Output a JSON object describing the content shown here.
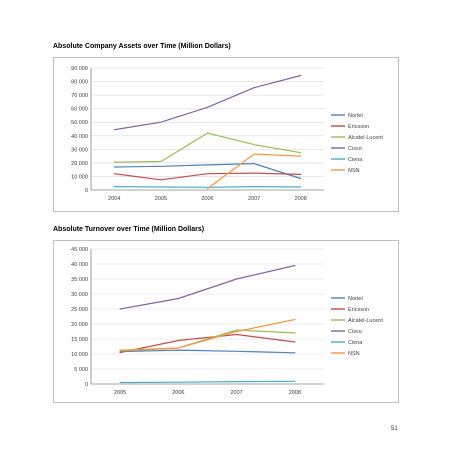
{
  "page": {
    "page_number": "51"
  },
  "chart_data": [
    {
      "type": "line",
      "title": "Absolute Company Assets over Time (Million Dollars)",
      "xlabel": "",
      "ylabel": "",
      "categories": [
        "2004",
        "2005",
        "2006",
        "2007",
        "2008"
      ],
      "ylim": [
        0,
        90000
      ],
      "yticks": [
        0,
        10000,
        20000,
        30000,
        40000,
        50000,
        60000,
        70000,
        80000,
        90000
      ],
      "ytick_labels": [
        "0",
        "10 000",
        "20 000",
        "30 000",
        "40 000",
        "50 000",
        "60 000",
        "70 000",
        "80 000",
        "90 000"
      ],
      "grid": true,
      "legend_position": "right",
      "series": [
        {
          "name": "Nortel",
          "color": "#4f81bd",
          "values": [
            17000,
            17500,
            18500,
            19500,
            8500
          ]
        },
        {
          "name": "Ericsson",
          "color": "#c0504d",
          "values": [
            12000,
            7500,
            12000,
            12500,
            11500
          ]
        },
        {
          "name": "Alcatel-Lucent",
          "color": "#9bbb59",
          "values": [
            20500,
            21000,
            42000,
            33500,
            27500
          ]
        },
        {
          "name": "Cisco",
          "color": "#8064a2",
          "values": [
            44500,
            50000,
            61000,
            75500,
            84500
          ]
        },
        {
          "name": "Ciena",
          "color": "#4bacc6",
          "values": [
            2500,
            2200,
            2000,
            2500,
            2200
          ]
        },
        {
          "name": "NSN",
          "color": "#f79646",
          "values": [
            null,
            null,
            1000,
            26500,
            25000
          ]
        }
      ]
    },
    {
      "type": "line",
      "title": "Absolute Turnover over Time (Million Dollars)",
      "xlabel": "",
      "ylabel": "",
      "categories": [
        "2005",
        "2006",
        "2007",
        "2008"
      ],
      "ylim": [
        0,
        45000
      ],
      "yticks": [
        0,
        5000,
        10000,
        15000,
        20000,
        25000,
        30000,
        35000,
        40000,
        45000
      ],
      "ytick_labels": [
        "0",
        "5 000",
        "10 000",
        "15 000",
        "20 000",
        "25 000",
        "30 000",
        "35 000",
        "40 000",
        "45 000"
      ],
      "grid": true,
      "legend_position": "right",
      "series": [
        {
          "name": "Nortel",
          "color": "#4f81bd",
          "values": [
            10800,
            11300,
            10900,
            10400
          ]
        },
        {
          "name": "Ericsson",
          "color": "#c0504d",
          "values": [
            10500,
            14500,
            16500,
            14000
          ]
        },
        {
          "name": "Alcatel-Lucent",
          "color": "#9bbb59",
          "values": [
            11000,
            12000,
            18000,
            17000
          ]
        },
        {
          "name": "Cisco",
          "color": "#8064a2",
          "values": [
            25000,
            28500,
            35000,
            39500
          ]
        },
        {
          "name": "Ciena",
          "color": "#4bacc6",
          "values": [
            500,
            600,
            800,
            900
          ]
        },
        {
          "name": "NSN",
          "color": "#f79646",
          "values": [
            11300,
            12000,
            17500,
            21500
          ]
        }
      ]
    }
  ]
}
